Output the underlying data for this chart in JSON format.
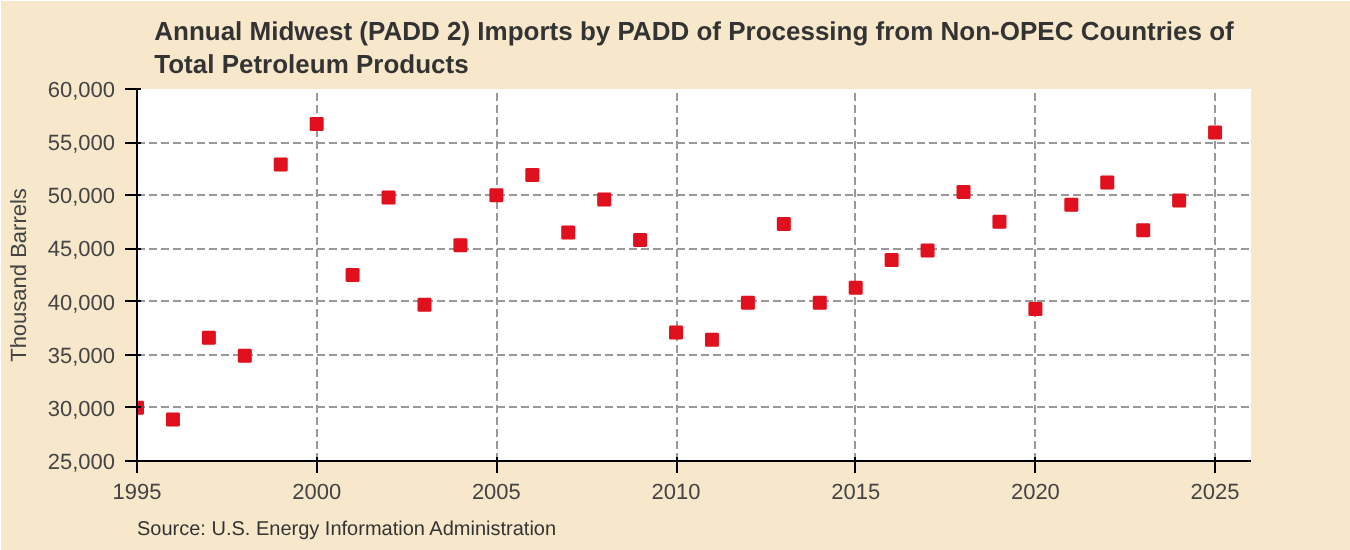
{
  "chart_data": {
    "type": "scatter",
    "title": "Annual Midwest (PADD 2) Imports by PADD of Processing from Non-OPEC Countries of Total Petroleum Products",
    "ylabel": "Thousand Barrels",
    "x": [
      1995,
      1996,
      1997,
      1998,
      1999,
      2000,
      2001,
      2002,
      2003,
      2004,
      2005,
      2006,
      2007,
      2008,
      2009,
      2010,
      2011,
      2012,
      2013,
      2014,
      2015,
      2016,
      2017,
      2018,
      2019,
      2020,
      2021,
      2022,
      2023,
      2024,
      2025
    ],
    "series": [
      {
        "color": "#e0101e",
        "values": [
          30000,
          28900,
          36600,
          34900,
          52900,
          56700,
          42500,
          49800,
          39700,
          45300,
          50000,
          51900,
          46500,
          49600,
          45800,
          37100,
          36400,
          39900,
          47300,
          39900,
          41300,
          43900,
          44800,
          50300,
          47500,
          39300,
          49100,
          51200,
          46700,
          49500,
          55900
        ]
      }
    ],
    "xlim": [
      1995,
      2026
    ],
    "xticks": [
      1995,
      2000,
      2005,
      2010,
      2015,
      2020,
      2025
    ],
    "ylim": [
      25000,
      60000
    ],
    "yticks": [
      {
        "value": 25000,
        "label": "25,000"
      },
      {
        "value": 30000,
        "label": "30,000"
      },
      {
        "value": 35000,
        "label": "35,000"
      },
      {
        "value": 40000,
        "label": "40,000"
      },
      {
        "value": 45000,
        "label": "45,000"
      },
      {
        "value": 50000,
        "label": "50,000"
      },
      {
        "value": 55000,
        "label": "55,000"
      },
      {
        "value": 60000,
        "label": "60,000"
      }
    ],
    "grid": true,
    "marker": "square",
    "annotations": [
      "Source: U.S. Energy Information Administration"
    ]
  }
}
